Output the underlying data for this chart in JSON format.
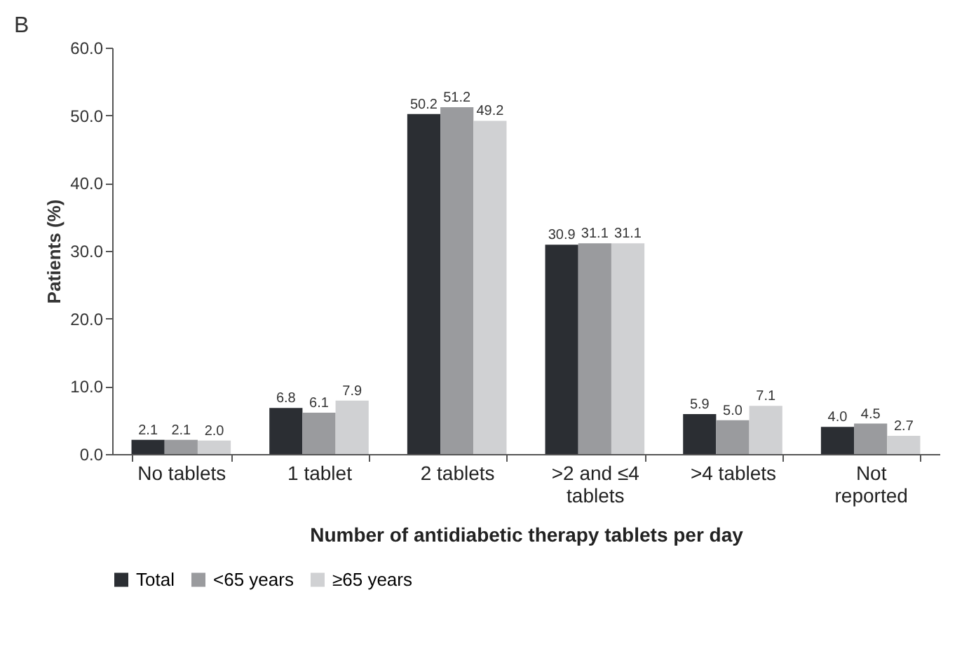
{
  "chart_data": {
    "type": "bar",
    "title": "B",
    "xlabel": "Number of antidiabetic therapy tablets per day",
    "ylabel": "Patients (%)",
    "categories": [
      "No tablets",
      "1 tablet",
      "2 tablets",
      ">2 and ≤4 tablets",
      ">4 tablets",
      "Not reported"
    ],
    "series": [
      {
        "name": "Total",
        "color": "#2b2e33",
        "values": [
          2.1,
          6.8,
          50.2,
          30.9,
          5.9,
          4.0
        ],
        "value_labels": [
          "2.1",
          "6.8",
          "50.2",
          "30.9",
          "5.9",
          "4.0"
        ]
      },
      {
        "name": "<65 years",
        "color": "#9a9b9e",
        "values": [
          2.1,
          6.1,
          51.2,
          31.1,
          5.0,
          4.5
        ],
        "value_labels": [
          "2.1",
          "6.1",
          "51.2",
          "31.1",
          "5.0",
          "4.5"
        ]
      },
      {
        "name": "≥65 years",
        "color": "#d0d1d3",
        "values": [
          2.0,
          7.9,
          49.2,
          31.1,
          7.1,
          2.7
        ],
        "value_labels": [
          "2.0",
          "7.9",
          "49.2",
          "31.1",
          "7.1",
          "2.7"
        ]
      }
    ],
    "ylim": [
      0,
      60
    ],
    "yticks": [
      {
        "value": 0,
        "label": "0.0"
      },
      {
        "value": 10,
        "label": "10.0"
      },
      {
        "value": 20,
        "label": "20.0"
      },
      {
        "value": 30,
        "label": "30.0"
      },
      {
        "value": 40,
        "label": "40.0"
      },
      {
        "value": 50,
        "label": "50.0"
      },
      {
        "value": 60,
        "label": "60.0"
      }
    ],
    "legend": "bottom",
    "grid": false
  }
}
